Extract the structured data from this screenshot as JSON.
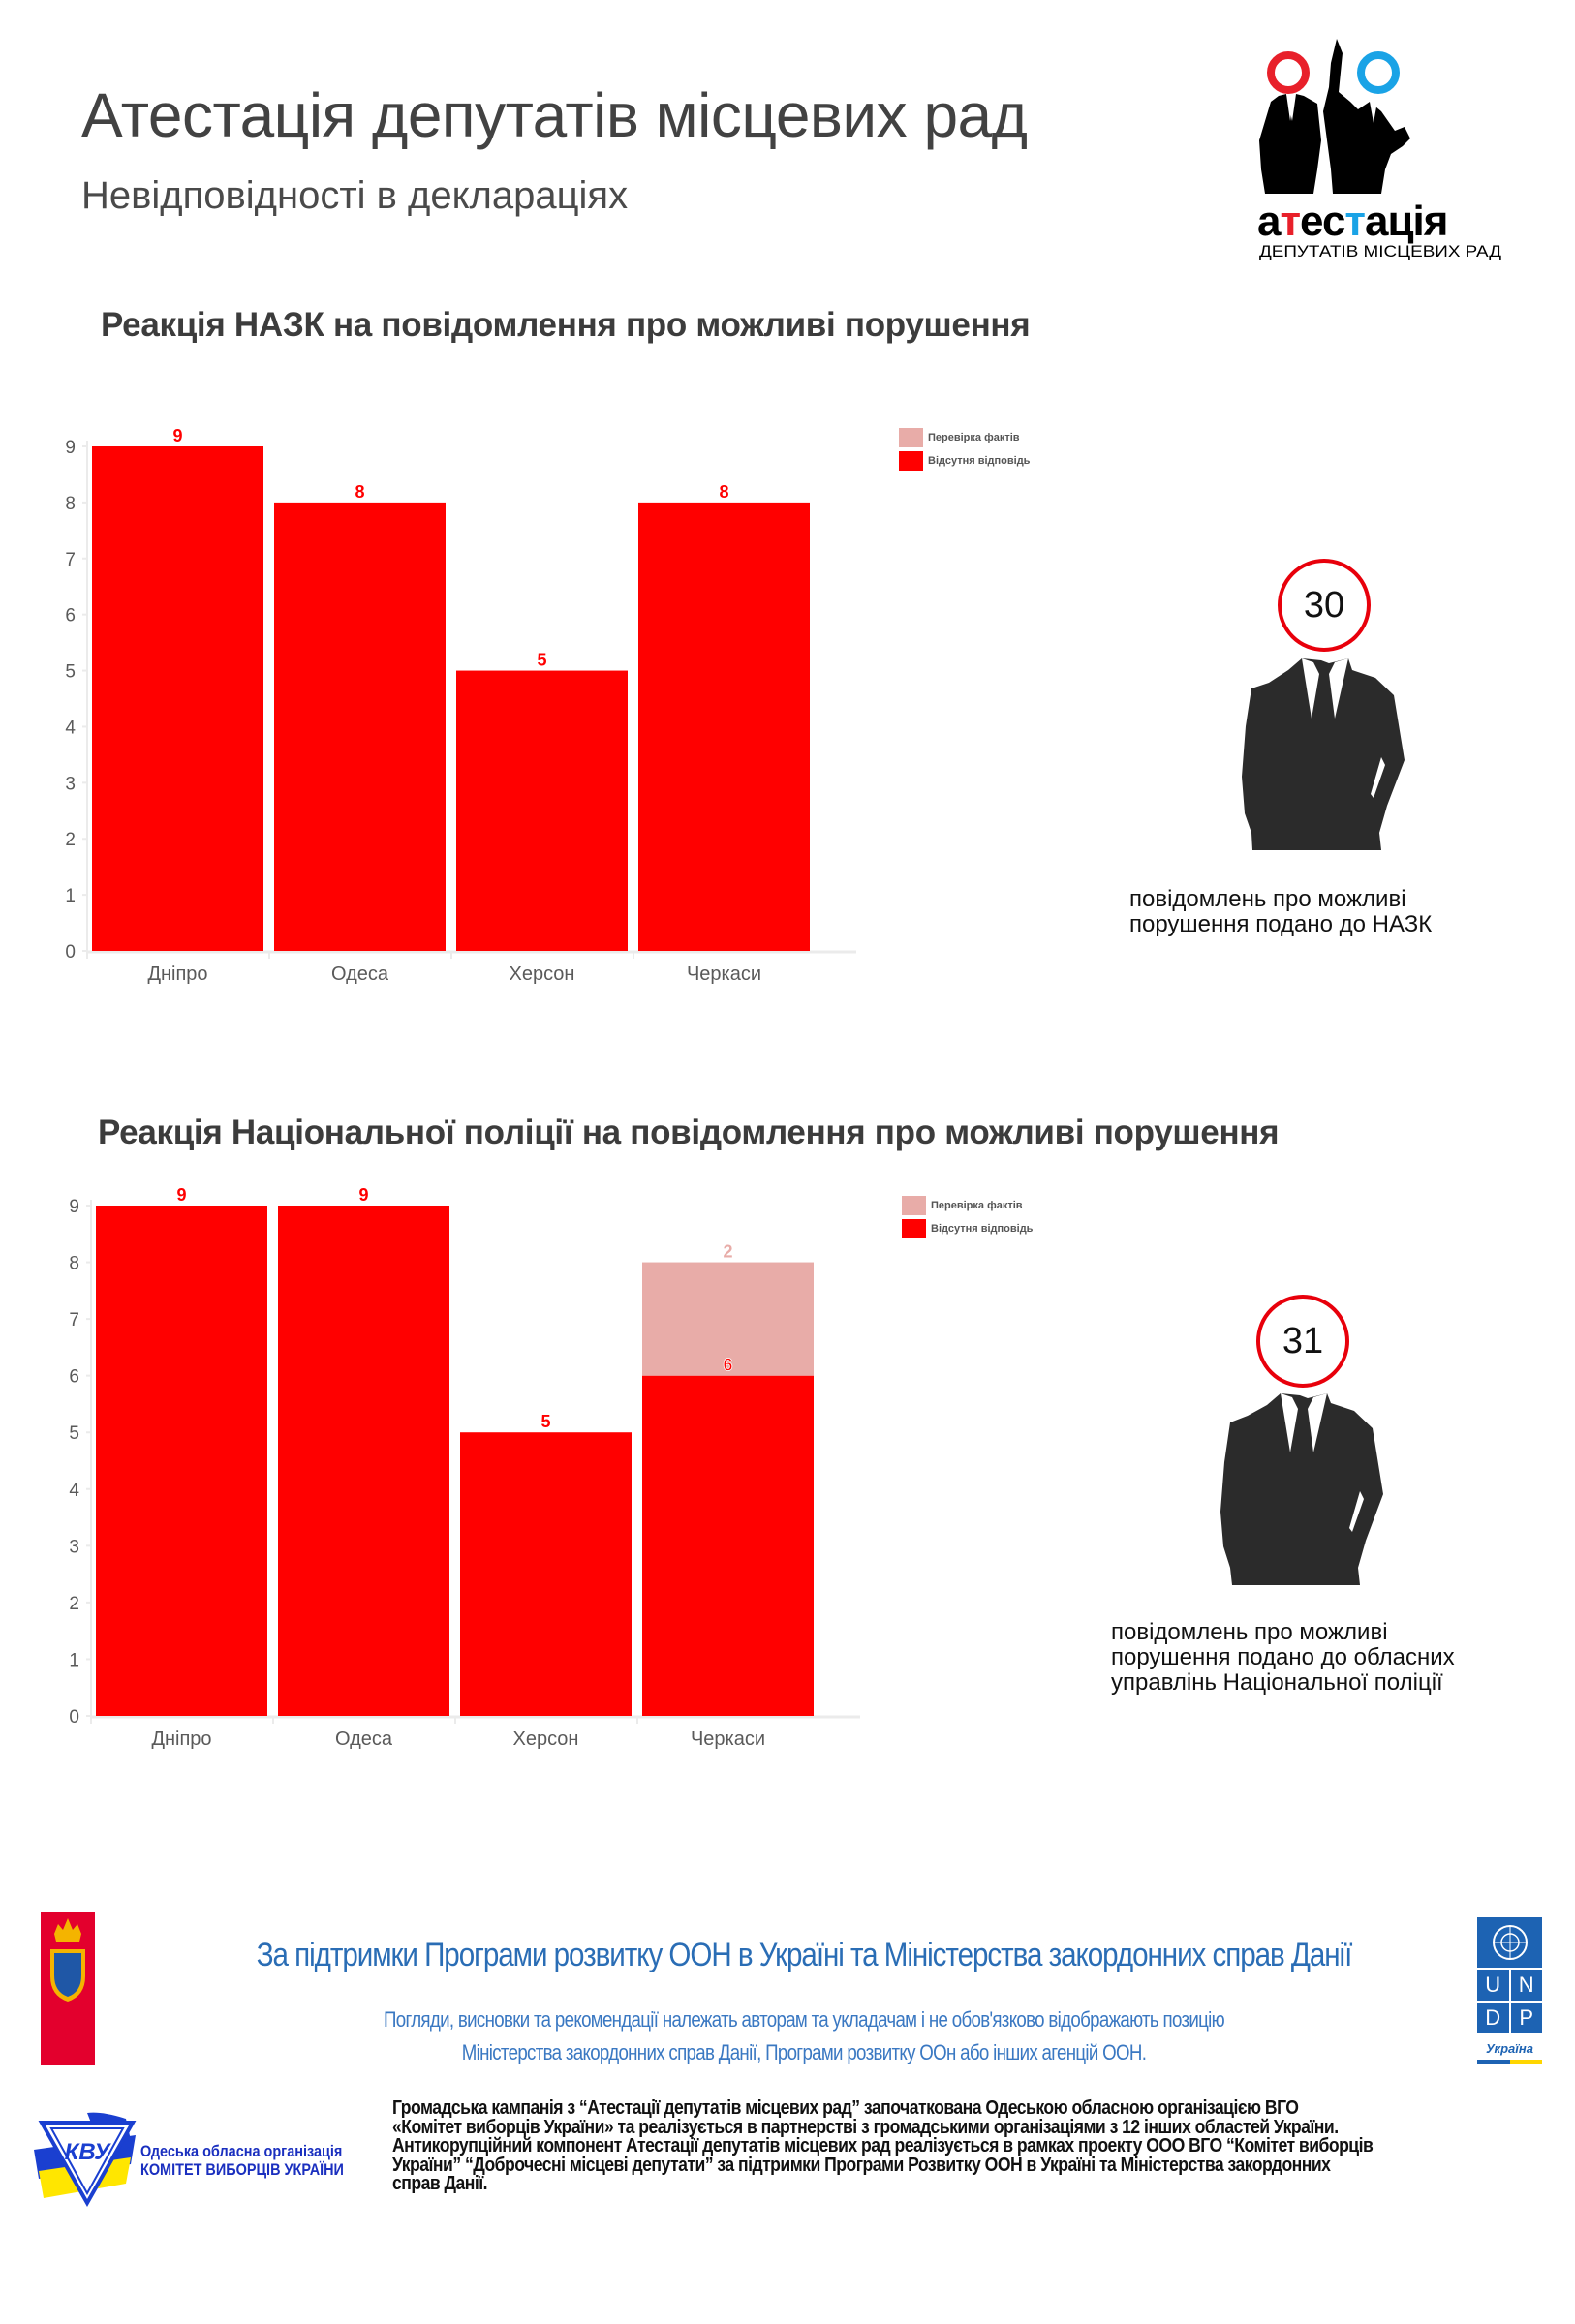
{
  "header": {
    "title": "Атестація депутатів місцевих рад",
    "subtitle": "Невідповідності в деклараціях",
    "logo_word": "атестація",
    "logo_tagline": "ДЕПУТАТІВ МІСЦЕВИХ РАД"
  },
  "colors": {
    "no_response": "#ff0000",
    "fact_check": "#e8aca8",
    "text_dark": "#424242",
    "circle": "#e8000b"
  },
  "chart_data": [
    {
      "type": "bar",
      "stacked": true,
      "title": "Реакція НАЗК на повідомлення про можливі порушення",
      "categories": [
        "Дніпро",
        "Одеса",
        "Херсон",
        "Черкаси"
      ],
      "series": [
        {
          "name": "Відсутня відповідь",
          "values": [
            9,
            8,
            5,
            8
          ],
          "labels": [
            "9",
            "8",
            "5",
            "8"
          ]
        },
        {
          "name": "Перевірка фактів",
          "values": [
            0,
            0,
            0,
            0
          ],
          "labels": [
            "",
            "",
            "",
            ""
          ]
        }
      ],
      "legend": [
        "Перевірка фактів",
        "Відсутня відповідь"
      ],
      "legend_position": "top-right",
      "yticks": [
        "0",
        "1",
        "2",
        "3",
        "4",
        "5",
        "6",
        "7",
        "8",
        "9"
      ],
      "ylim": [
        0,
        9
      ],
      "xlabel": "",
      "ylabel": "",
      "grid": false
    },
    {
      "type": "bar",
      "stacked": true,
      "title": "Реакція Національної поліції на повідомлення про можливі порушення",
      "categories": [
        "Дніпро",
        "Одеса",
        "Херсон",
        "Черкаси"
      ],
      "series": [
        {
          "name": "Відсутня відповідь",
          "values": [
            9,
            9,
            5,
            6
          ],
          "labels": [
            "9",
            "9",
            "5",
            "6"
          ]
        },
        {
          "name": "Перевірка фактів",
          "values": [
            0,
            0,
            0,
            2
          ],
          "labels": [
            "",
            "",
            "",
            "2"
          ]
        }
      ],
      "legend": [
        "Перевірка фактів",
        "Відсутня відповідь"
      ],
      "legend_position": "top-right",
      "yticks": [
        "0",
        "1",
        "2",
        "3",
        "4",
        "5",
        "6",
        "7",
        "8",
        "9"
      ],
      "ylim": [
        0,
        9
      ],
      "xlabel": "",
      "ylabel": "",
      "grid": false
    }
  ],
  "pictograms": [
    {
      "count": "30",
      "lines": [
        "повідомлень про можливі",
        "порушення подано до НАЗК"
      ]
    },
    {
      "count": "31",
      "lines": [
        "повідомлень про можливі",
        "порушення подано до обласних",
        "управлінь Національної поліції"
      ]
    }
  ],
  "footer": {
    "support_line": "За підтримки Програми розвитку ООН в Україні та Міністерства закордонних справ Данії",
    "disclaimer_line1": "Погляди, висновки та рекомендації  належать авторам та укладачам і не обов'язково відображають позицію",
    "disclaimer_line2": "Міністерства закордонних справ Данії, Програми розвитку ООн або інших агенцій ООН.",
    "undp_letters": [
      "U",
      "N",
      "D",
      "P"
    ],
    "undp_country": "Україна",
    "cvu_line1": "Одеська обласна організація",
    "cvu_line2": "КОМІТЕТ ВИБОРЦІВ УКРАЇНИ",
    "cvu_logo_text": "КВУ",
    "paragraph": [
      "Громадська кампанія з “Атестації депутатів місцевих рад” започаткована Одеською обласною організацією ВГО",
      "«Комітет виборців України» та реалізується в партнерстві з громадськими організаціями з 12 інших областей України.",
      "Антикорупційний компонент Атестації депутатів місцевих рад реалізується в рамках проекту ООО ВГО “Комітет виборців",
      "України” “Доброчесні місцеві депутати” за підтримки Програми Розвитку ООН в Україні та Міністерства закордонних",
      "справ Данії."
    ]
  }
}
